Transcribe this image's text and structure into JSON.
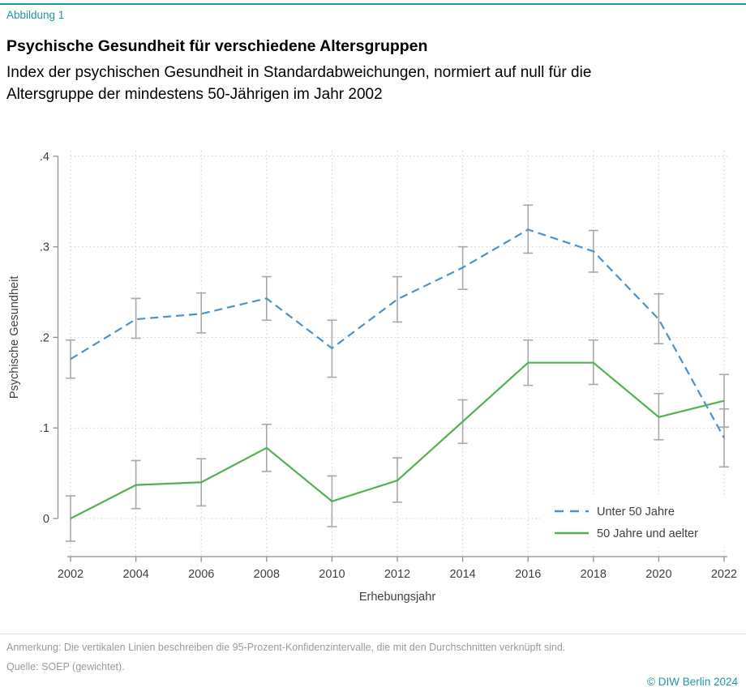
{
  "page": {
    "figure_label": "Abbildung 1",
    "title": "Psychische Gesundheit für verschiedene Altersgruppen",
    "subtitle": "Index der psychischen Gesundheit in Standardabweichungen, normiert auf null für die Altersgruppe der mindestens 50-Jährigen im Jahr 2002",
    "note": "Anmerkung: Die vertikalen Linien beschreiben die 95-Prozent-Konfidenzintervalle, die mit den Durchschnitten verknüpft sind.",
    "source": "Quelle: SOEP (gewichtet).",
    "copyright": "© DIW Berlin 2024",
    "accent_color": "#1b99a1"
  },
  "chart_data": {
    "type": "line",
    "title": "Psychische Gesundheit für verschiedene Altersgruppen",
    "x": [
      2002,
      2004,
      2006,
      2008,
      2010,
      2012,
      2014,
      2016,
      2018,
      2020,
      2022
    ],
    "xlabel": "Erhebungsjahr",
    "ylabel": "Psychische Gesundheit",
    "ylim": [
      -0.05,
      0.42
    ],
    "yticks": [
      0,
      0.1,
      0.2,
      0.3,
      0.4
    ],
    "ytick_labels": [
      "0",
      ".1",
      ".2",
      ".3",
      ".4"
    ],
    "grid": "dotted horizontal and vertical",
    "legend_position": "inside bottom-right, no border",
    "error_bars": "95-Prozent-Konfidenzintervalle",
    "colors": {
      "grid": "#cdcdcd",
      "axis": "#8f8f8f",
      "error_bar": "#a9a9a9",
      "tick_text": "#3f3f3f"
    },
    "series": [
      {
        "name": "Unter 50 Jahre",
        "style": "dashed",
        "color": "#4d92c6",
        "values": [
          0.176,
          0.22,
          0.226,
          0.243,
          0.188,
          0.242,
          0.277,
          0.319,
          0.295,
          0.22,
          0.089
        ],
        "ci_low": [
          0.155,
          0.199,
          0.205,
          0.219,
          0.156,
          0.217,
          0.253,
          0.293,
          0.272,
          0.193,
          0.057
        ],
        "ci_high": [
          0.197,
          0.243,
          0.249,
          0.267,
          0.219,
          0.267,
          0.3,
          0.346,
          0.318,
          0.248,
          0.121
        ]
      },
      {
        "name": "50 Jahre und aelter",
        "style": "solid",
        "color": "#54b054",
        "values": [
          0.0,
          0.037,
          0.04,
          0.078,
          0.019,
          0.042,
          0.107,
          0.172,
          0.172,
          0.112,
          0.13
        ],
        "ci_low": [
          -0.025,
          0.011,
          0.014,
          0.052,
          -0.009,
          0.018,
          0.083,
          0.147,
          0.148,
          0.087,
          0.101
        ],
        "ci_high": [
          0.025,
          0.064,
          0.066,
          0.104,
          0.047,
          0.067,
          0.131,
          0.197,
          0.197,
          0.138,
          0.159
        ]
      }
    ]
  }
}
